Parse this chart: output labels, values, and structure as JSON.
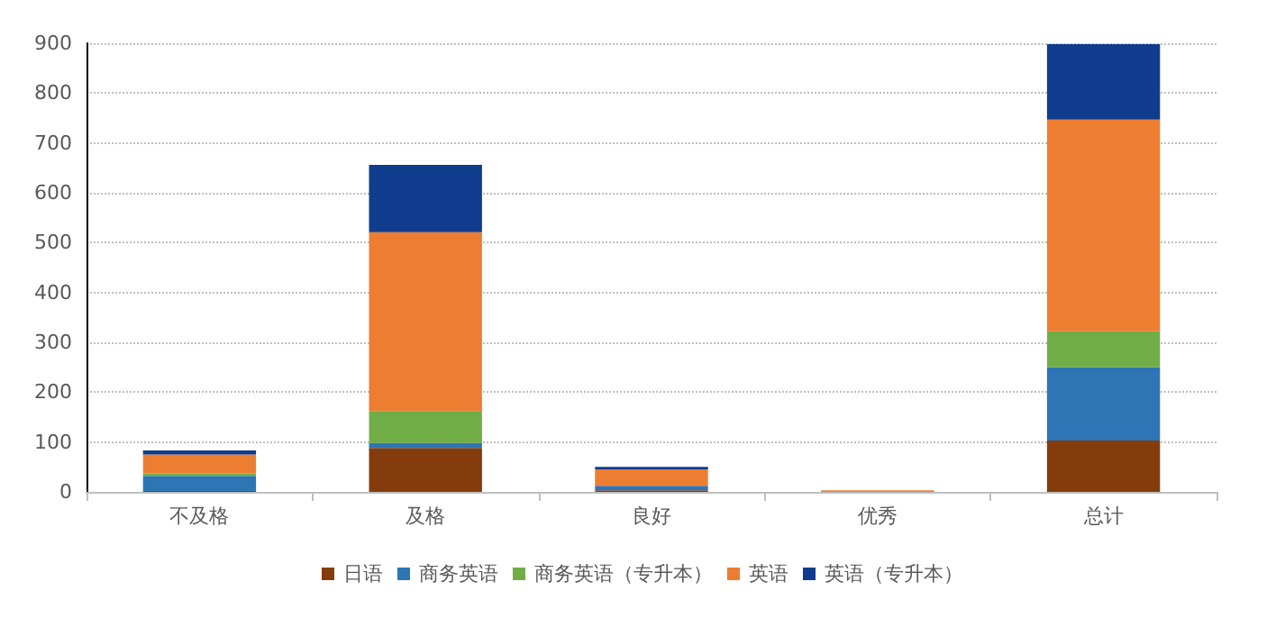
{
  "chart_data": {
    "type": "bar",
    "stacked": true,
    "categories": [
      "不及格",
      "及格",
      "良好",
      "优秀",
      "总计"
    ],
    "series": [
      {
        "name": "日语",
        "color": "#843c0c",
        "values": [
          2,
          88,
          3,
          0,
          103
        ]
      },
      {
        "name": "商务英语",
        "color": "#2e75b6",
        "values": [
          30,
          10,
          9,
          0,
          147
        ]
      },
      {
        "name": "商务英语（专升本）",
        "color": "#70ad47",
        "values": [
          5,
          64,
          null,
          0,
          72
        ]
      },
      {
        "name": "英语",
        "color": "#ed7d31",
        "values": [
          38,
          359,
          33,
          3,
          425
        ]
      },
      {
        "name": "英语（专升本）",
        "color": "#0f3c8c",
        "values": [
          8,
          135,
          5,
          0,
          151
        ]
      }
    ],
    "ylim": [
      0,
      900
    ],
    "yticks": [
      0,
      100,
      200,
      300,
      400,
      500,
      600,
      700,
      800,
      900
    ],
    "grid": "y",
    "legend": "bottom"
  }
}
